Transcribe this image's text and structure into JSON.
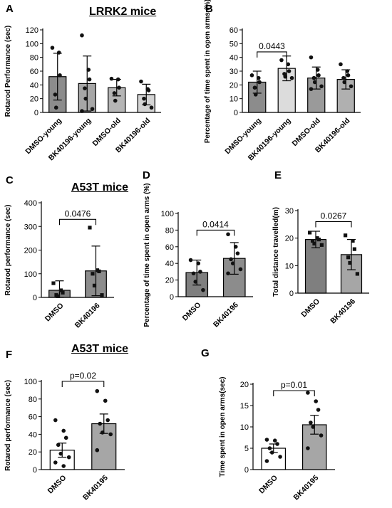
{
  "groups": {
    "lrrk2": "LRRK2 mice",
    "a53t_top": "A53T mice",
    "a53t_bottom": "A53T mice"
  },
  "chart_data": [
    {
      "id": "A",
      "type": "bar",
      "ylabel": "Rotarod Performance (sec)",
      "ylim": [
        0,
        120
      ],
      "yticks": [
        0,
        20,
        40,
        60,
        80,
        100,
        120
      ],
      "categories": [
        "DMSO-young",
        "BK40196-young",
        "DMSO-old",
        "BK40196-old"
      ],
      "values": [
        52,
        42,
        36,
        26
      ],
      "sd": [
        34,
        40,
        12,
        15
      ],
      "bar_fills": [
        "#8c8c8c",
        "#a6a6a6",
        "#b5b5b5",
        "#d4d4d4"
      ],
      "points": [
        [
          94,
          87,
          54,
          26,
          7
        ],
        [
          112,
          62,
          48,
          35,
          20,
          5,
          2
        ],
        [
          49,
          48,
          36,
          28,
          17
        ],
        [
          45,
          34,
          32,
          20,
          12,
          7
        ]
      ],
      "point_marker": "circle",
      "annotations": []
    },
    {
      "id": "B",
      "type": "bar",
      "ylabel": "Percentage of time spent in open arms (%)",
      "ylim": [
        0,
        60
      ],
      "yticks": [
        0,
        10,
        20,
        30,
        40,
        50,
        60
      ],
      "categories": [
        "DMSO-young",
        "BK40196-young",
        "DMSO-old",
        "BK40196-old"
      ],
      "values": [
        22,
        32,
        25,
        24
      ],
      "sd": [
        8,
        9,
        8,
        7
      ],
      "bar_fills": [
        "#8c8c8c",
        "#dcdcdc",
        "#9a9a9a",
        "#b0b0b0"
      ],
      "points": [
        [
          27,
          25,
          22,
          18,
          13
        ],
        [
          38,
          35,
          30,
          28,
          26,
          25
        ],
        [
          40,
          31,
          27,
          25,
          22,
          19,
          17
        ],
        [
          35,
          30,
          27,
          25,
          22,
          19
        ]
      ],
      "point_marker": "circle",
      "annotations": [
        {
          "text": "0.0443",
          "from": 0,
          "to": 1,
          "y": 44
        }
      ]
    },
    {
      "id": "C",
      "type": "bar",
      "ylabel": "Rotarod performance (sec)",
      "ylim": [
        0,
        400
      ],
      "yticks": [
        0,
        100,
        200,
        300,
        400
      ],
      "categories": [
        "DMSO",
        "BK40196"
      ],
      "values": [
        30,
        112
      ],
      "sd": [
        40,
        105
      ],
      "bar_fills": [
        "#7f7f7f",
        "#8c8c8c"
      ],
      "points": [
        [
          60,
          30,
          20,
          10,
          5
        ],
        [
          295,
          115,
          110,
          100,
          50,
          10
        ]
      ],
      "point_marker": "square",
      "annotations": [
        {
          "text": "0.0476",
          "from": 0,
          "to": 1,
          "y": 330
        }
      ]
    },
    {
      "id": "D",
      "type": "bar",
      "ylabel": "Percentage of time spent in open arms (%)",
      "ylim": [
        0,
        100
      ],
      "yticks": [
        0,
        20,
        40,
        60,
        80,
        100
      ],
      "categories": [
        "DMSO",
        "BK40196"
      ],
      "values": [
        29,
        46
      ],
      "sd": [
        15,
        19
      ],
      "bar_fills": [
        "#7f7f7f",
        "#8c8c8c"
      ],
      "points": [
        [
          44,
          40,
          30,
          28,
          18,
          8
        ],
        [
          75,
          60,
          52,
          45,
          40,
          33,
          28
        ]
      ],
      "point_marker": "circle",
      "annotations": [
        {
          "text": "0.0414",
          "from": 0,
          "to": 1,
          "y": 80
        }
      ]
    },
    {
      "id": "E",
      "type": "bar",
      "ylabel": "Total distance travelled(m)",
      "ylim": [
        0,
        30
      ],
      "yticks": [
        0,
        10,
        20,
        30
      ],
      "categories": [
        "DMSO",
        "BK40196"
      ],
      "values": [
        19.5,
        14
      ],
      "sd": [
        3,
        5.5
      ],
      "bar_fills": [
        "#7f7f7f",
        "#a6a6a6"
      ],
      "points": [
        [
          22,
          20,
          19.5,
          19,
          18,
          17.5
        ],
        [
          21,
          19,
          16,
          13,
          11,
          7
        ]
      ],
      "point_marker": "square",
      "annotations": [
        {
          "text": "0.0267",
          "from": 0,
          "to": 1,
          "y": 26
        }
      ]
    },
    {
      "id": "F",
      "type": "bar",
      "ylabel": "Rotarod performance (sec)",
      "ylim": [
        0,
        100
      ],
      "yticks": [
        0,
        20,
        40,
        60,
        80,
        100
      ],
      "categories": [
        "DMSO",
        "BK40195"
      ],
      "values": [
        22,
        52
      ],
      "sd": [
        8,
        11
      ],
      "bar_fills": [
        "#ffffff",
        "#a6a6a6"
      ],
      "points": [
        [
          56,
          44,
          36,
          28,
          18,
          14,
          8,
          4
        ],
        [
          89,
          78,
          56,
          52,
          42,
          40,
          22
        ]
      ],
      "point_marker": "circle",
      "annotations": [
        {
          "text": "p=0.02",
          "from": 0,
          "to": 1,
          "y": 100
        }
      ]
    },
    {
      "id": "G",
      "type": "bar",
      "ylabel": "Time spent in open arms(sec)",
      "ylim": [
        0,
        20
      ],
      "yticks": [
        0,
        5,
        10,
        15,
        20
      ],
      "categories": [
        "DMSO",
        "BK40195"
      ],
      "values": [
        5,
        10.5
      ],
      "sd": [
        1,
        2.2
      ],
      "bar_fills": [
        "#ffffff",
        "#a6a6a6"
      ],
      "points": [
        [
          7,
          6.8,
          6,
          5,
          4,
          3,
          2
        ],
        [
          18,
          16,
          14,
          11,
          10,
          8,
          5
        ]
      ],
      "point_marker": "circle",
      "annotations": [
        {
          "text": "p=0.01",
          "from": 0,
          "to": 1,
          "y": 18.5
        }
      ]
    }
  ]
}
